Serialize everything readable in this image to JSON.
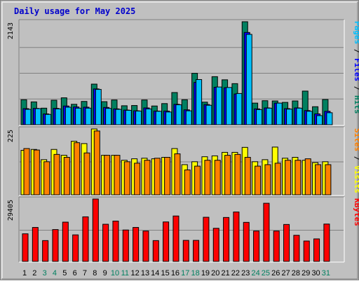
{
  "chart_data": {
    "type": "bar",
    "title": "Daily usage for May 2025",
    "days": [
      1,
      2,
      3,
      4,
      5,
      6,
      7,
      8,
      9,
      10,
      11,
      12,
      13,
      14,
      15,
      16,
      17,
      18,
      19,
      20,
      21,
      22,
      23,
      24,
      25,
      26,
      27,
      28,
      29,
      30,
      31
    ],
    "weekend_days": [
      3,
      4,
      10,
      11,
      17,
      18,
      24,
      25,
      31
    ],
    "panels": [
      {
        "id": "hits-panel",
        "max_label": "2143",
        "max": 2143,
        "right_labels": [
          {
            "text": "Pages",
            "color": "#00c0ff"
          },
          {
            "text": " / ",
            "color": "#000000"
          },
          {
            "text": "Files",
            "color": "#0000ff"
          },
          {
            "text": " / ",
            "color": "#000000"
          },
          {
            "text": "Hits",
            "color": "#008060"
          }
        ],
        "series": [
          {
            "name": "Hits",
            "color": "#008060",
            "values": [
              520,
              475,
              345,
              510,
              560,
              425,
              485,
              845,
              480,
              515,
              395,
              400,
              515,
              390,
              440,
              670,
              520,
              1070,
              470,
              1000,
              935,
              855,
              2143,
              450,
              500,
              495,
              465,
              495,
              700,
              375,
              525
            ]
          },
          {
            "name": "Files",
            "color": "#0000ff",
            "values": [
              335,
              340,
              225,
              340,
              390,
              370,
              365,
              745,
              360,
              330,
              305,
              290,
              350,
              285,
              285,
              425,
              310,
              880,
              420,
              780,
              770,
              640,
              1920,
              330,
              350,
              450,
              335,
              350,
              295,
              225,
              280
            ]
          },
          {
            "name": "Pages",
            "color": "#00c0ff",
            "values": [
              320,
              335,
              215,
              330,
              365,
              345,
              345,
              735,
              340,
              320,
              300,
              285,
              330,
              280,
              265,
              415,
              290,
              940,
              405,
              785,
              775,
              650,
              1880,
              315,
              345,
              450,
              325,
              345,
              280,
              190,
              250
            ]
          }
        ]
      },
      {
        "id": "visits-panel",
        "max_label": "225",
        "max": 225,
        "right_labels": [
          {
            "text": "Sites",
            "color": "#ff8000"
          },
          {
            "text": " / ",
            "color": "#000000"
          },
          {
            "text": "Visits",
            "color": "#ffff00"
          }
        ],
        "series": [
          {
            "name": "Visits",
            "color": "#ffff00",
            "values": [
              152,
              155,
              120,
              155,
              135,
              183,
              175,
              225,
              135,
              135,
              118,
              123,
              125,
              123,
              128,
              158,
              103,
              113,
              130,
              133,
              145,
              145,
              162,
              113,
              120,
              163,
              125,
              128,
              118,
              110,
              113
            ]
          },
          {
            "name": "Sites",
            "color": "#ff8000",
            "values": [
              158,
              153,
              113,
              138,
              128,
              178,
              143,
              218,
              135,
              135,
              113,
              108,
              118,
              125,
              128,
              140,
              85,
              98,
              118,
              118,
              135,
              138,
              128,
              98,
              103,
              108,
              118,
              118,
              123,
              103,
              103
            ]
          }
        ]
      },
      {
        "id": "kbytes-panel",
        "max_label": "29405",
        "max": 29405,
        "right_labels": [
          {
            "text": "KBytes",
            "color": "#ff0000"
          }
        ],
        "series": [
          {
            "name": "KBytes",
            "color": "#ff0000",
            "values": [
              13000,
              16000,
              9800,
              15000,
              18500,
              12500,
              21000,
              29405,
              17500,
              19000,
              14800,
              16000,
              14300,
              9800,
              18600,
              21400,
              9900,
              9900,
              20800,
              15600,
              20700,
              23300,
              18400,
              14300,
              27400,
              14300,
              17400,
              12300,
              9600,
              10600,
              17600
            ]
          }
        ]
      }
    ]
  }
}
